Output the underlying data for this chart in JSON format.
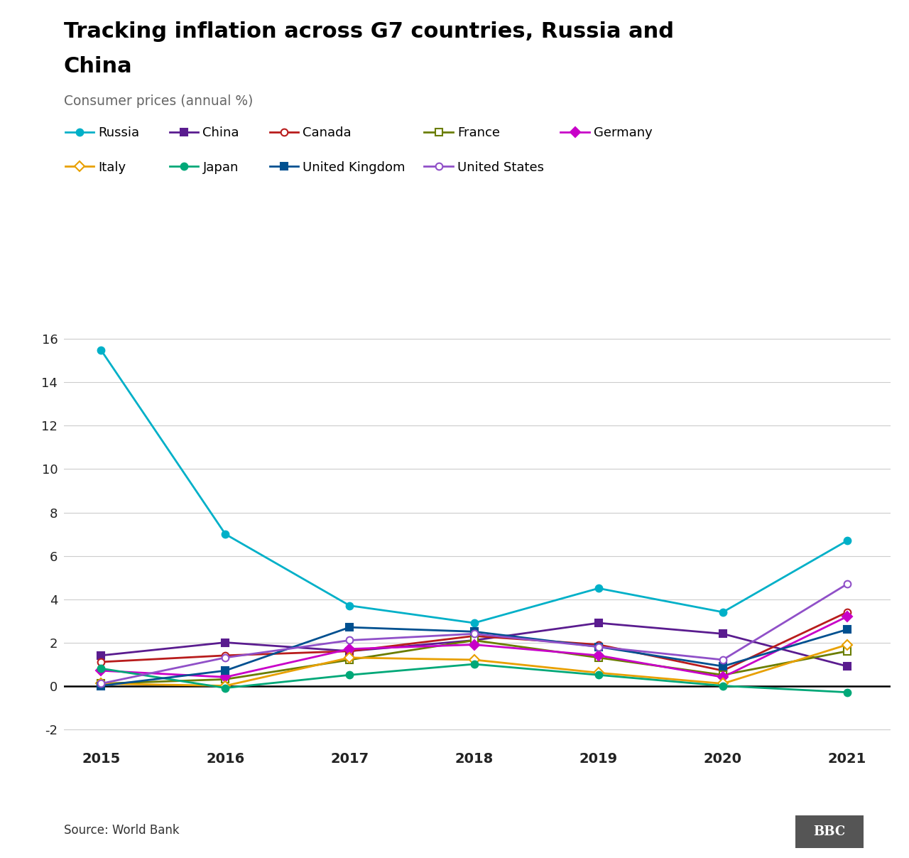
{
  "title_line1": "Tracking inflation across G7 countries, Russia and",
  "title_line2": "China",
  "subtitle": "Consumer prices (annual %)",
  "source": "Source: World Bank",
  "years": [
    2015,
    2016,
    2017,
    2018,
    2019,
    2020,
    2021
  ],
  "series": {
    "Russia": {
      "color": "#00b0c8",
      "values": [
        15.5,
        7.0,
        3.7,
        2.9,
        4.5,
        3.4,
        6.7
      ],
      "marker": "o",
      "markerfacecolor": "#00b0c8",
      "markersize": 7
    },
    "China": {
      "color": "#5a1c8f",
      "values": [
        1.4,
        2.0,
        1.6,
        2.1,
        2.9,
        2.4,
        0.9
      ],
      "marker": "s",
      "markerfacecolor": "#5a1c8f",
      "markersize": 7
    },
    "Canada": {
      "color": "#b81c1c",
      "values": [
        1.1,
        1.4,
        1.6,
        2.3,
        1.9,
        0.7,
        3.4
      ],
      "marker": "o",
      "markerfacecolor": "white",
      "markersize": 7
    },
    "France": {
      "color": "#6a7d00",
      "values": [
        0.1,
        0.3,
        1.2,
        2.1,
        1.3,
        0.5,
        1.6
      ],
      "marker": "s",
      "markerfacecolor": "white",
      "markersize": 7
    },
    "Germany": {
      "color": "#c800c8",
      "values": [
        0.7,
        0.4,
        1.7,
        1.9,
        1.4,
        0.4,
        3.2
      ],
      "marker": "D",
      "markerfacecolor": "#c800c8",
      "markersize": 7
    },
    "Italy": {
      "color": "#e8a000",
      "values": [
        0.1,
        0.0,
        1.3,
        1.2,
        0.6,
        0.1,
        1.9
      ],
      "marker": "D",
      "markerfacecolor": "white",
      "markersize": 7
    },
    "Japan": {
      "color": "#00a878",
      "values": [
        0.8,
        -0.1,
        0.5,
        1.0,
        0.5,
        0.0,
        -0.3
      ],
      "marker": "o",
      "markerfacecolor": "#00a878",
      "markersize": 7
    },
    "United Kingdom": {
      "color": "#005090",
      "values": [
        0.0,
        0.7,
        2.7,
        2.5,
        1.8,
        0.9,
        2.6
      ],
      "marker": "s",
      "markerfacecolor": "#005090",
      "markersize": 7
    },
    "United States": {
      "color": "#9050c8",
      "values": [
        0.1,
        1.3,
        2.1,
        2.4,
        1.8,
        1.2,
        4.7
      ],
      "marker": "o",
      "markerfacecolor": "white",
      "markersize": 7
    }
  },
  "ylim": [
    -2.8,
    17.0
  ],
  "yticks": [
    -2,
    0,
    2,
    4,
    6,
    8,
    10,
    12,
    14,
    16
  ],
  "background_color": "#ffffff",
  "grid_color": "#cccccc",
  "zero_line_color": "#000000"
}
